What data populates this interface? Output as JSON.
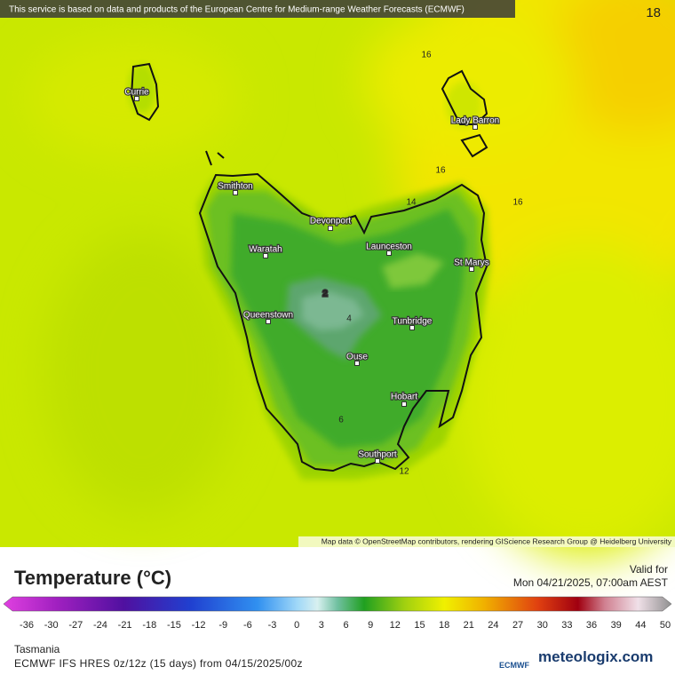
{
  "banner": "This service is based on data and products of the European Centre for Medium-range Weather Forecasts (ECMWF)",
  "frame": "18",
  "attribution": "Map data © OpenStreetMap contributors, rendering GIScience Research Group @ Heidelberg University",
  "cities": [
    "Currie",
    "Lady Barron",
    "Smithton",
    "Devonport",
    "Waratah",
    "Launceston",
    "St Marys",
    "Queenstown",
    "Tunbridge",
    "Ouse",
    "Hobart",
    "Southport"
  ],
  "contour_labels": [
    16,
    16,
    16,
    14,
    12,
    2,
    4,
    6
  ],
  "legend": {
    "title": "Temperature (°C)",
    "valid_label": "Valid for",
    "valid_time": "Mon 04/21/2025, 07:00am AEST",
    "scale": [
      -36,
      -30,
      -27,
      -24,
      -21,
      -18,
      -15,
      -12,
      -9,
      -6,
      -3,
      0,
      3,
      6,
      9,
      12,
      15,
      18,
      21,
      24,
      27,
      30,
      33,
      36,
      39,
      44,
      50
    ]
  },
  "footer": {
    "region": "Tasmania",
    "model": "ECMWF IFS HRES 0z/12z (15 days) from 04/15/2025/00z",
    "ecmwf_logo": "ECMWF",
    "brand": "meteologix.com"
  }
}
